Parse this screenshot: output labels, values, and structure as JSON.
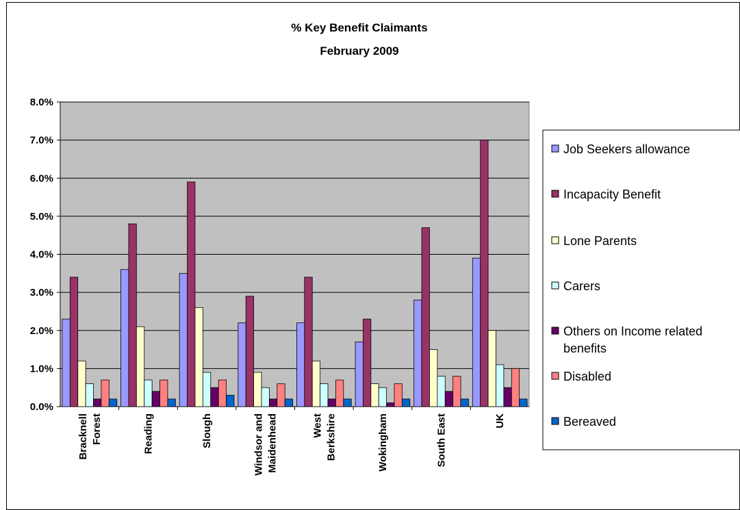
{
  "chart_data": {
    "type": "bar",
    "title": [
      "% Key Benefit Claimants",
      "February 2009"
    ],
    "categories": [
      [
        "Bracknell",
        "Forest"
      ],
      [
        "Reading"
      ],
      [
        "Slough"
      ],
      [
        "Windsor and",
        "Maidenhead"
      ],
      [
        "West",
        "Berkshire"
      ],
      [
        "Wokingham"
      ],
      [
        "South East"
      ],
      [
        "UK"
      ]
    ],
    "ylim": [
      0,
      0.08
    ],
    "yticks": [
      "0.0%",
      "1.0%",
      "2.0%",
      "3.0%",
      "4.0%",
      "5.0%",
      "6.0%",
      "7.0%",
      "8.0%"
    ],
    "grid": true,
    "legend_position": "right",
    "plot_background": "#c0c0c0",
    "series": [
      {
        "name": [
          "Job Seekers allowance"
        ],
        "color": "#9999ff",
        "values": [
          0.023,
          0.036,
          0.035,
          0.022,
          0.022,
          0.017,
          0.028,
          0.039
        ]
      },
      {
        "name": [
          "Incapacity Benefit"
        ],
        "color": "#993366",
        "values": [
          0.034,
          0.048,
          0.059,
          0.029,
          0.034,
          0.023,
          0.047,
          0.07
        ]
      },
      {
        "name": [
          "Lone Parents"
        ],
        "color": "#ffffcc",
        "values": [
          0.012,
          0.021,
          0.026,
          0.009,
          0.012,
          0.006,
          0.015,
          0.02
        ]
      },
      {
        "name": [
          "Carers"
        ],
        "color": "#ccffff",
        "values": [
          0.006,
          0.007,
          0.009,
          0.005,
          0.006,
          0.005,
          0.008,
          0.011
        ]
      },
      {
        "name": [
          "Others on Income related",
          "benefits"
        ],
        "color": "#660066",
        "values": [
          0.002,
          0.004,
          0.005,
          0.002,
          0.002,
          0.001,
          0.004,
          0.005
        ]
      },
      {
        "name": [
          "Disabled"
        ],
        "color": "#ff8080",
        "values": [
          0.007,
          0.007,
          0.007,
          0.006,
          0.007,
          0.006,
          0.008,
          0.01
        ]
      },
      {
        "name": [
          "Bereaved"
        ],
        "color": "#0066cc",
        "values": [
          0.002,
          0.002,
          0.003,
          0.002,
          0.002,
          0.002,
          0.002,
          0.002
        ]
      }
    ]
  }
}
